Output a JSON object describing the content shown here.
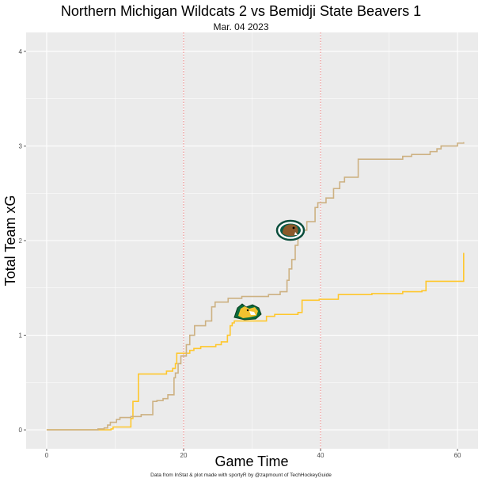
{
  "chart_data": {
    "type": "line",
    "title": "Northern Michigan Wildcats 2 vs Bemidji State Beavers 1",
    "subtitle": "Mar. 04 2023",
    "xlabel": "Game Time",
    "ylabel": "Total Team xG",
    "caption": "Data from InStat & plot made with sportyR by @zapmount of TechHockeyGuide",
    "xlim": [
      -3,
      63
    ],
    "ylim": [
      -0.2,
      4.2
    ],
    "x_ticks": [
      0,
      20,
      40,
      60
    ],
    "y_ticks": [
      0,
      1,
      2,
      3,
      4
    ],
    "period_lines": [
      20,
      40
    ],
    "grid": true,
    "colors": {
      "panel": "#ebebeb",
      "grid_major": "#ffffff",
      "period_line": "#f08080",
      "nmu": "#FFC72C",
      "bsu": "#CDB182"
    },
    "series": [
      {
        "team": "Northern Michigan Wildcats",
        "logo_icon": "wildcat-logo-icon",
        "color": "#FFC72C",
        "points": [
          [
            0,
            0
          ],
          [
            9.4,
            0.01
          ],
          [
            9.7,
            0.03
          ],
          [
            12.3,
            0.12
          ],
          [
            12.6,
            0.3
          ],
          [
            13.2,
            0.3
          ],
          [
            13.4,
            0.59
          ],
          [
            17.5,
            0.62
          ],
          [
            18.4,
            0.65
          ],
          [
            18.8,
            0.7
          ],
          [
            19.0,
            0.81
          ],
          [
            20.7,
            0.81
          ],
          [
            20.9,
            0.84
          ],
          [
            21.5,
            0.86
          ],
          [
            22.5,
            0.88
          ],
          [
            24.7,
            0.9
          ],
          [
            25.5,
            0.93
          ],
          [
            26.4,
            1.0
          ],
          [
            26.8,
            1.1
          ],
          [
            27.1,
            1.13
          ],
          [
            27.4,
            1.15
          ],
          [
            32.1,
            1.2
          ],
          [
            33.3,
            1.22
          ],
          [
            36.7,
            1.24
          ],
          [
            37.3,
            1.37
          ],
          [
            39.8,
            1.38
          ],
          [
            42.6,
            1.43
          ],
          [
            47.5,
            1.44
          ],
          [
            52.0,
            1.46
          ],
          [
            54.8,
            1.47
          ],
          [
            55.4,
            1.57
          ],
          [
            60.9,
            1.87
          ]
        ]
      },
      {
        "team": "Bemidji State Beavers",
        "logo_icon": "beaver-logo-icon",
        "color": "#CDB182",
        "points": [
          [
            0,
            0
          ],
          [
            7.5,
            0.01
          ],
          [
            8.4,
            0.02
          ],
          [
            8.9,
            0.05
          ],
          [
            9.3,
            0.08
          ],
          [
            10.2,
            0.11
          ],
          [
            10.7,
            0.13
          ],
          [
            12.3,
            0.14
          ],
          [
            13.8,
            0.16
          ],
          [
            15.5,
            0.3
          ],
          [
            16.1,
            0.31
          ],
          [
            17.0,
            0.33
          ],
          [
            17.7,
            0.37
          ],
          [
            18.6,
            0.55
          ],
          [
            18.8,
            0.6
          ],
          [
            19.2,
            0.7
          ],
          [
            19.6,
            0.78
          ],
          [
            20.4,
            0.9
          ],
          [
            20.9,
            1.0
          ],
          [
            21.6,
            1.1
          ],
          [
            23.2,
            1.15
          ],
          [
            24.1,
            1.3
          ],
          [
            24.6,
            1.35
          ],
          [
            26.5,
            1.39
          ],
          [
            28.5,
            1.41
          ],
          [
            32.4,
            1.43
          ],
          [
            34.1,
            1.46
          ],
          [
            35.1,
            1.58
          ],
          [
            35.4,
            1.7
          ],
          [
            35.8,
            1.8
          ],
          [
            36.3,
            1.95
          ],
          [
            36.7,
            2.05
          ],
          [
            37.3,
            2.11
          ],
          [
            38.0,
            2.2
          ],
          [
            39.2,
            2.35
          ],
          [
            39.6,
            2.4
          ],
          [
            40.8,
            2.45
          ],
          [
            41.9,
            2.55
          ],
          [
            42.8,
            2.62
          ],
          [
            43.5,
            2.67
          ],
          [
            45.5,
            2.86
          ],
          [
            52.0,
            2.89
          ],
          [
            53.3,
            2.91
          ],
          [
            56.0,
            2.94
          ],
          [
            57.0,
            2.97
          ],
          [
            57.6,
            3.0
          ],
          [
            60.0,
            3.03
          ],
          [
            60.9,
            3.04
          ]
        ]
      }
    ]
  }
}
